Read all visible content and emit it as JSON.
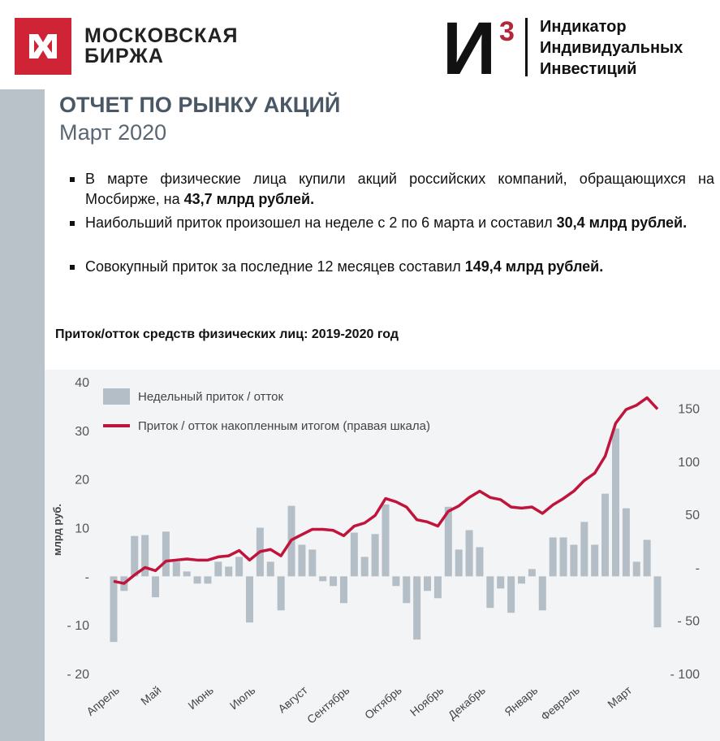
{
  "header": {
    "logo_text": [
      "МОСКОВСКАЯ",
      "БИРЖА"
    ],
    "index_letter": "И",
    "index_sup": "3",
    "index_text": [
      "Индикатор",
      "Индивидуальных",
      "Инвестиций"
    ]
  },
  "report": {
    "title": "ОТЧЕТ ПО РЫНКУ АКЦИЙ",
    "subtitle": "Март 2020",
    "bullets": [
      [
        {
          "text": "В марте физические лица купили акций российских компаний, обращающихся на Мосбирже, на ",
          "bold": false
        },
        {
          "text": "43,7 млрд рублей.",
          "bold": true
        }
      ],
      [
        {
          "text": "Наибольший приток произошел на неделе с 2 по 6 марта и составил ",
          "bold": false
        },
        {
          "text": "30,4 млрд рублей.",
          "bold": true
        }
      ],
      [
        {
          "text": "Совокупный приток за последние 12 месяцев составил ",
          "bold": false
        },
        {
          "text": "149,4 млрд рублей.",
          "bold": true
        }
      ]
    ]
  },
  "chart_data": {
    "type": "bar-line",
    "title": "Приток/отток средств физических лиц: 2019-2020 год",
    "ylabel": "млрд руб.",
    "categories": [
      "Апрель",
      null,
      null,
      null,
      "Май",
      null,
      null,
      null,
      null,
      "Июнь",
      null,
      null,
      null,
      "Июль",
      null,
      null,
      null,
      null,
      "Август",
      null,
      null,
      null,
      "Сентябрь",
      null,
      null,
      null,
      null,
      "Октябрь",
      null,
      null,
      null,
      "Ноябрь",
      null,
      null,
      null,
      "Декабрь",
      null,
      null,
      null,
      null,
      "Январь",
      null,
      null,
      null,
      "Февраль",
      null,
      null,
      null,
      null,
      "Март",
      null,
      null,
      null
    ],
    "series": [
      {
        "name": "Недельный приток / отток",
        "color": "#b4bec6",
        "values": [
          -13.5,
          -3,
          8.3,
          8.5,
          -4.3,
          9.2,
          3,
          1,
          -1.5,
          -1.5,
          3,
          2,
          4,
          -9.5,
          10,
          3,
          -7,
          14.5,
          6.5,
          5.5,
          -1,
          -2,
          -5.5,
          9,
          4,
          8.7,
          14.8,
          -2,
          -5.5,
          -13,
          -3,
          -4.5,
          14.3,
          5.5,
          9.5,
          6,
          -6.5,
          -2.5,
          -7.5,
          -1.5,
          1.5,
          -7,
          8,
          8,
          6.5,
          11.2,
          6.5,
          17,
          30.4,
          14,
          3,
          7.5,
          -10.5
        ]
      },
      {
        "name": "Приток / отток накопленным итогом (правая шкала)",
        "color": "#c0143c",
        "axis": "y2",
        "values": [
          -13,
          -15,
          -7,
          0,
          -3,
          6,
          7,
          8,
          7,
          7,
          10,
          11,
          16,
          7,
          15,
          17,
          11,
          26,
          31,
          36,
          36,
          35,
          30,
          39,
          42,
          49,
          65,
          62,
          57,
          45,
          43,
          39,
          53,
          58,
          66,
          72,
          66,
          64,
          57,
          56,
          57,
          51,
          59,
          65,
          72,
          82,
          89,
          105,
          136,
          149,
          153,
          160,
          149.4
        ]
      }
    ],
    "ylim": [
      -20,
      40
    ],
    "yticks": [
      {
        "value": -20,
        "label": "- 20"
      },
      {
        "value": -10,
        "label": "- 10"
      },
      {
        "value": 0,
        "label": "-"
      },
      10,
      20,
      30,
      40
    ],
    "y2lim": [
      -100,
      175
    ],
    "y2ticks": [
      {
        "value": -100,
        "label": "- 100"
      },
      {
        "value": -50,
        "label": "- 50"
      },
      {
        "value": 0,
        "label": "-"
      },
      50,
      100,
      150
    ],
    "grid": false,
    "legend": "top-left"
  }
}
